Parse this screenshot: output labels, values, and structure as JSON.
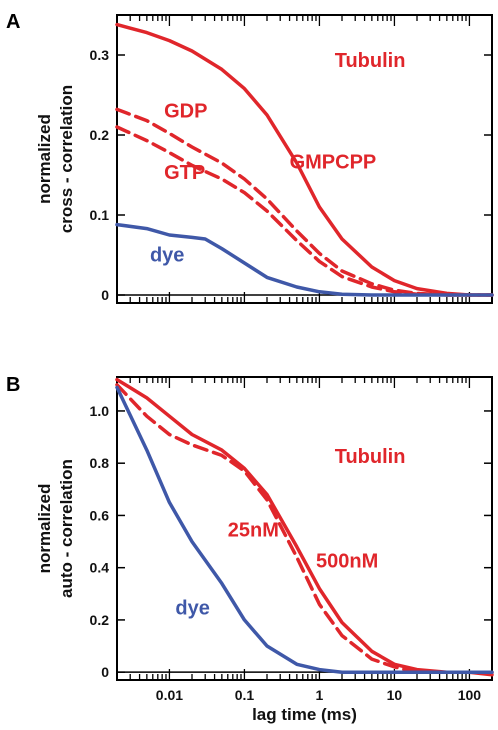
{
  "chart_data": [
    {
      "panel_label": "A",
      "type": "line",
      "xscale": "log",
      "xlim": [
        0.002,
        200
      ],
      "ylim": [
        -0.01,
        0.35
      ],
      "ylabel_lines": [
        "normalized",
        "cross - correlation"
      ],
      "yticks": [
        0,
        0.1,
        0.2,
        0.3
      ],
      "ytick_labels": [
        "0",
        "0.1",
        "0.2",
        "0.3"
      ],
      "xtick_labels": [],
      "colors": {
        "red": "#e0262b",
        "blue": "#3f58a8"
      },
      "annotations": [
        {
          "text": "Tubulin",
          "color": "#e0262b",
          "x": 1.6,
          "y": 0.285
        },
        {
          "text": "GDP",
          "color": "#e0262b",
          "x": 0.0085,
          "y": 0.222
        },
        {
          "text": "GTP",
          "color": "#e0262b",
          "x": 0.0085,
          "y": 0.145
        },
        {
          "text": "GMPCPP",
          "color": "#e0262b",
          "x": 0.4,
          "y": 0.158
        },
        {
          "text": "dye",
          "color": "#3f58a8",
          "x": 0.0055,
          "y": 0.042
        }
      ],
      "series": [
        {
          "color": "#e0262b",
          "dash": "solid",
          "x": [
            0.002,
            0.005,
            0.01,
            0.02,
            0.05,
            0.1,
            0.2,
            0.5,
            1,
            2,
            5,
            10,
            20,
            50,
            100,
            200
          ],
          "y": [
            0.338,
            0.328,
            0.318,
            0.305,
            0.282,
            0.258,
            0.225,
            0.165,
            0.11,
            0.07,
            0.035,
            0.018,
            0.008,
            0.002,
            0.0,
            0.0
          ]
        },
        {
          "color": "#e0262b",
          "dash": "dashed",
          "x": [
            0.002,
            0.005,
            0.01,
            0.02,
            0.05,
            0.1,
            0.2,
            0.5,
            1,
            2,
            5,
            10,
            20,
            50,
            100,
            200
          ],
          "y": [
            0.232,
            0.218,
            0.202,
            0.185,
            0.165,
            0.145,
            0.12,
            0.08,
            0.052,
            0.03,
            0.014,
            0.006,
            0.002,
            0.0,
            0.0,
            0.0
          ]
        },
        {
          "color": "#e0262b",
          "dash": "dashed",
          "x": [
            0.002,
            0.005,
            0.01,
            0.02,
            0.05,
            0.1,
            0.2,
            0.5,
            1,
            2,
            5,
            10,
            20,
            50,
            100,
            200
          ],
          "y": [
            0.21,
            0.193,
            0.178,
            0.162,
            0.145,
            0.128,
            0.105,
            0.068,
            0.042,
            0.023,
            0.01,
            0.004,
            0.001,
            0.0,
            0.0,
            0.0
          ]
        },
        {
          "color": "#3f58a8",
          "dash": "solid",
          "x": [
            0.002,
            0.005,
            0.01,
            0.02,
            0.03,
            0.05,
            0.1,
            0.2,
            0.5,
            1,
            2,
            5,
            10,
            50,
            200
          ],
          "y": [
            0.088,
            0.083,
            0.075,
            0.072,
            0.07,
            0.058,
            0.04,
            0.022,
            0.01,
            0.004,
            0.001,
            0.0,
            0.0,
            0.0,
            0.0
          ]
        }
      ]
    },
    {
      "panel_label": "B",
      "type": "line",
      "xscale": "log",
      "xlim": [
        0.002,
        200
      ],
      "ylim": [
        -0.03,
        1.13
      ],
      "xlabel": "lag time (ms)",
      "ylabel_lines": [
        "normalized",
        "auto - correlation"
      ],
      "yticks": [
        0,
        0.2,
        0.4,
        0.6,
        0.8,
        1.0
      ],
      "ytick_labels": [
        "0",
        "0.2",
        "0.4",
        "0.6",
        "0.8",
        "1.0"
      ],
      "xticks": [
        0.01,
        0.1,
        1,
        10,
        100
      ],
      "xtick_labels": [
        "0.01",
        "0.1",
        "1",
        "10",
        "100"
      ],
      "colors": {
        "red": "#e0262b",
        "blue": "#3f58a8"
      },
      "annotations": [
        {
          "text": "Tubulin",
          "color": "#e0262b",
          "x": 1.6,
          "y": 0.8
        },
        {
          "text": "25nM",
          "color": "#e0262b",
          "x": 0.06,
          "y": 0.52
        },
        {
          "text": "500nM",
          "color": "#e0262b",
          "x": 0.9,
          "y": 0.4
        },
        {
          "text": "dye",
          "color": "#3f58a8",
          "x": 0.012,
          "y": 0.22
        }
      ],
      "series": [
        {
          "color": "#e0262b",
          "dash": "solid",
          "x": [
            0.002,
            0.005,
            0.01,
            0.02,
            0.05,
            0.1,
            0.2,
            0.5,
            1,
            2,
            5,
            10,
            20,
            50,
            100,
            200
          ],
          "y": [
            1.12,
            1.05,
            0.98,
            0.91,
            0.85,
            0.78,
            0.68,
            0.48,
            0.32,
            0.19,
            0.08,
            0.03,
            0.01,
            0.0,
            0.0,
            -0.01
          ]
        },
        {
          "color": "#e0262b",
          "dash": "dashed",
          "x": [
            0.002,
            0.005,
            0.01,
            0.02,
            0.05,
            0.1,
            0.2,
            0.5,
            1,
            2,
            5,
            10,
            20,
            50,
            100,
            200
          ],
          "y": [
            1.1,
            0.98,
            0.91,
            0.87,
            0.83,
            0.77,
            0.66,
            0.44,
            0.26,
            0.14,
            0.05,
            0.02,
            0.0,
            0.0,
            0.0,
            0.0
          ]
        },
        {
          "color": "#3f58a8",
          "dash": "solid",
          "x": [
            0.002,
            0.005,
            0.01,
            0.02,
            0.05,
            0.1,
            0.2,
            0.5,
            1,
            2,
            5,
            10,
            20,
            50,
            200
          ],
          "y": [
            1.09,
            0.85,
            0.65,
            0.5,
            0.34,
            0.2,
            0.1,
            0.03,
            0.01,
            0.0,
            0.0,
            0.0,
            0.0,
            0.0,
            0.0
          ]
        }
      ]
    }
  ]
}
